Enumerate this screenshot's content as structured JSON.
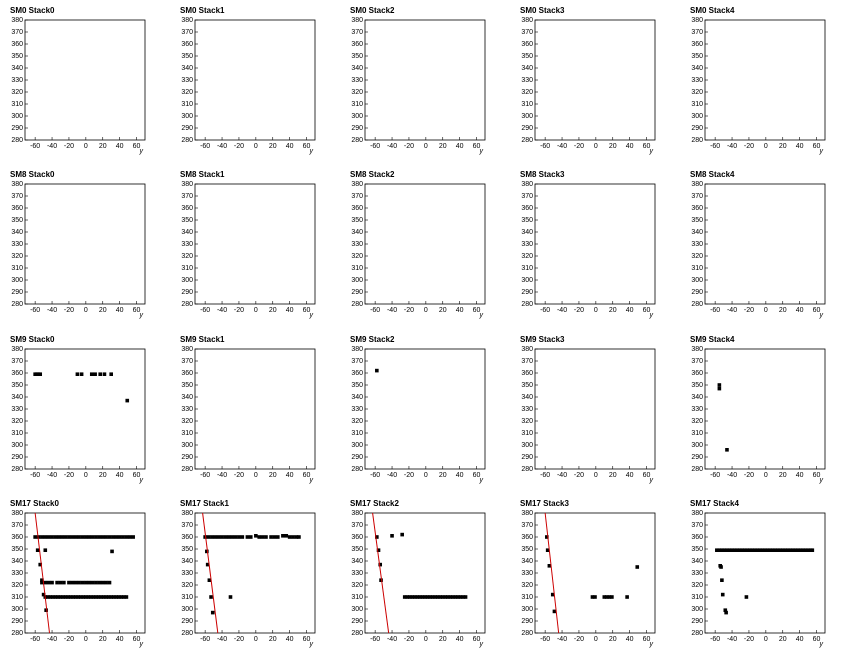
{
  "chart_data": [
    {
      "type": "scatter",
      "title": "SM0 Stack0",
      "x_label": "y",
      "xlim": [
        -72,
        70
      ],
      "ylim": [
        280,
        380
      ],
      "xticks": [
        -60,
        -40,
        -20,
        0,
        20,
        40,
        60
      ],
      "yticks": [
        280,
        290,
        300,
        310,
        320,
        330,
        340,
        350,
        360,
        370,
        380
      ],
      "color": "#000000",
      "x": [],
      "y": []
    },
    {
      "type": "scatter",
      "title": "SM0 Stack1",
      "x_label": "y",
      "xlim": [
        -72,
        70
      ],
      "ylim": [
        280,
        380
      ],
      "xticks": [
        -60,
        -40,
        -20,
        0,
        20,
        40,
        60
      ],
      "yticks": [
        280,
        290,
        300,
        310,
        320,
        330,
        340,
        350,
        360,
        370,
        380
      ],
      "color": "#000000",
      "x": [],
      "y": []
    },
    {
      "type": "scatter",
      "title": "SM0 Stack2",
      "x_label": "y",
      "xlim": [
        -72,
        70
      ],
      "ylim": [
        280,
        380
      ],
      "xticks": [
        -60,
        -40,
        -20,
        0,
        20,
        40,
        60
      ],
      "yticks": [
        280,
        290,
        300,
        310,
        320,
        330,
        340,
        350,
        360,
        370,
        380
      ],
      "color": "#000000",
      "x": [],
      "y": []
    },
    {
      "type": "scatter",
      "title": "SM0 Stack3",
      "x_label": "y",
      "xlim": [
        -72,
        70
      ],
      "ylim": [
        280,
        380
      ],
      "xticks": [
        -60,
        -40,
        -20,
        0,
        20,
        40,
        60
      ],
      "yticks": [
        280,
        290,
        300,
        310,
        320,
        330,
        340,
        350,
        360,
        370,
        380
      ],
      "color": "#000000",
      "x": [],
      "y": []
    },
    {
      "type": "scatter",
      "title": "SM0 Stack4",
      "x_label": "y",
      "xlim": [
        -72,
        70
      ],
      "ylim": [
        280,
        380
      ],
      "xticks": [
        -60,
        -40,
        -20,
        0,
        20,
        40,
        60
      ],
      "yticks": [
        280,
        290,
        300,
        310,
        320,
        330,
        340,
        350,
        360,
        370,
        380
      ],
      "color": "#000000",
      "x": [],
      "y": []
    },
    {
      "type": "scatter",
      "title": "SM8 Stack0",
      "x_label": "y",
      "xlim": [
        -72,
        70
      ],
      "ylim": [
        280,
        380
      ],
      "xticks": [
        -60,
        -40,
        -20,
        0,
        20,
        40,
        60
      ],
      "yticks": [
        280,
        290,
        300,
        310,
        320,
        330,
        340,
        350,
        360,
        370,
        380
      ],
      "color": "#000000",
      "x": [],
      "y": []
    },
    {
      "type": "scatter",
      "title": "SM8 Stack1",
      "x_label": "y",
      "xlim": [
        -72,
        70
      ],
      "ylim": [
        280,
        380
      ],
      "xticks": [
        -60,
        -40,
        -20,
        0,
        20,
        40,
        60
      ],
      "yticks": [
        280,
        290,
        300,
        310,
        320,
        330,
        340,
        350,
        360,
        370,
        380
      ],
      "color": "#000000",
      "x": [],
      "y": []
    },
    {
      "type": "scatter",
      "title": "SM8 Stack2",
      "x_label": "y",
      "xlim": [
        -72,
        70
      ],
      "ylim": [
        280,
        380
      ],
      "xticks": [
        -60,
        -40,
        -20,
        0,
        20,
        40,
        60
      ],
      "yticks": [
        280,
        290,
        300,
        310,
        320,
        330,
        340,
        350,
        360,
        370,
        380
      ],
      "color": "#000000",
      "x": [],
      "y": []
    },
    {
      "type": "scatter",
      "title": "SM8 Stack3",
      "x_label": "y",
      "xlim": [
        -72,
        70
      ],
      "ylim": [
        280,
        380
      ],
      "xticks": [
        -60,
        -40,
        -20,
        0,
        20,
        40,
        60
      ],
      "yticks": [
        280,
        290,
        300,
        310,
        320,
        330,
        340,
        350,
        360,
        370,
        380
      ],
      "color": "#000000",
      "x": [],
      "y": []
    },
    {
      "type": "scatter",
      "title": "SM8 Stack4",
      "x_label": "y",
      "xlim": [
        -72,
        70
      ],
      "ylim": [
        280,
        380
      ],
      "xticks": [
        -60,
        -40,
        -20,
        0,
        20,
        40,
        60
      ],
      "yticks": [
        280,
        290,
        300,
        310,
        320,
        330,
        340,
        350,
        360,
        370,
        380
      ],
      "color": "#000000",
      "x": [],
      "y": []
    },
    {
      "type": "scatter",
      "title": "SM9 Stack0",
      "x_label": "y",
      "xlim": [
        -72,
        70
      ],
      "ylim": [
        280,
        380
      ],
      "xticks": [
        -60,
        -40,
        -20,
        0,
        20,
        40,
        60
      ],
      "yticks": [
        280,
        290,
        300,
        310,
        320,
        330,
        340,
        350,
        360,
        370,
        380
      ],
      "color": "#000000",
      "x": [
        -60,
        -58,
        -56,
        -54,
        -10,
        -5,
        7,
        11,
        17,
        22,
        30,
        49
      ],
      "y": [
        359,
        359,
        359,
        359,
        359,
        359,
        359,
        359,
        359,
        359,
        359,
        337
      ]
    },
    {
      "type": "scatter",
      "title": "SM9 Stack1",
      "x_label": "y",
      "xlim": [
        -72,
        70
      ],
      "ylim": [
        280,
        380
      ],
      "xticks": [
        -60,
        -40,
        -20,
        0,
        20,
        40,
        60
      ],
      "yticks": [
        280,
        290,
        300,
        310,
        320,
        330,
        340,
        350,
        360,
        370,
        380
      ],
      "color": "#000000",
      "x": [],
      "y": []
    },
    {
      "type": "scatter",
      "title": "SM9 Stack2",
      "x_label": "y",
      "xlim": [
        -72,
        70
      ],
      "ylim": [
        280,
        380
      ],
      "xticks": [
        -60,
        -40,
        -20,
        0,
        20,
        40,
        60
      ],
      "yticks": [
        280,
        290,
        300,
        310,
        320,
        330,
        340,
        350,
        360,
        370,
        380
      ],
      "color": "#000000",
      "x": [
        -58
      ],
      "y": [
        362
      ]
    },
    {
      "type": "scatter",
      "title": "SM9 Stack3",
      "x_label": "y",
      "xlim": [
        -72,
        70
      ],
      "ylim": [
        280,
        380
      ],
      "xticks": [
        -60,
        -40,
        -20,
        0,
        20,
        40,
        60
      ],
      "yticks": [
        280,
        290,
        300,
        310,
        320,
        330,
        340,
        350,
        360,
        370,
        380
      ],
      "color": "#000000",
      "x": [],
      "y": []
    },
    {
      "type": "scatter",
      "title": "SM9 Stack4",
      "x_label": "y",
      "xlim": [
        -72,
        70
      ],
      "ylim": [
        280,
        380
      ],
      "xticks": [
        -60,
        -40,
        -20,
        0,
        20,
        40,
        60
      ],
      "yticks": [
        280,
        290,
        300,
        310,
        320,
        330,
        340,
        350,
        360,
        370,
        380
      ],
      "color": "#000000",
      "x": [
        -55,
        -55,
        -46
      ],
      "y": [
        350,
        347,
        296
      ]
    },
    {
      "type": "scatter",
      "title": "SM17 Stack0",
      "x_label": "y",
      "xlim": [
        -72,
        70
      ],
      "ylim": [
        280,
        380
      ],
      "xticks": [
        -60,
        -40,
        -20,
        0,
        20,
        40,
        60
      ],
      "yticks": [
        280,
        290,
        300,
        310,
        320,
        330,
        340,
        350,
        360,
        370,
        380
      ],
      "color": "#000000",
      "x": [
        -60,
        -56,
        -52,
        -48,
        -44,
        -40,
        -36,
        -32,
        -28,
        -24,
        -20,
        -16,
        -12,
        -8,
        -4,
        0,
        4,
        8,
        12,
        16,
        20,
        24,
        28,
        32,
        36,
        40,
        44,
        48,
        52,
        56,
        -57,
        -54,
        -52,
        -50,
        -47,
        -48,
        -52,
        -48,
        -44,
        -40,
        -34,
        -30,
        -26,
        -20,
        -16,
        -12,
        -8,
        -4,
        0,
        4,
        8,
        12,
        16,
        20,
        24,
        28,
        -48,
        -45,
        -42,
        -39,
        -36,
        -33,
        -30,
        -27,
        -24,
        -21,
        -18,
        -15,
        -12,
        -9,
        -6,
        -3,
        0,
        3,
        6,
        9,
        12,
        15,
        18,
        21,
        24,
        27,
        30,
        33,
        36,
        39,
        42,
        45,
        48,
        31
      ],
      "y": [
        360,
        360,
        360,
        360,
        360,
        360,
        360,
        360,
        360,
        360,
        360,
        360,
        360,
        360,
        360,
        360,
        360,
        360,
        360,
        360,
        360,
        360,
        360,
        360,
        360,
        360,
        360,
        360,
        360,
        360,
        349,
        337,
        324,
        312,
        299,
        349,
        322,
        322,
        322,
        322,
        322,
        322,
        322,
        322,
        322,
        322,
        322,
        322,
        322,
        322,
        322,
        322,
        322,
        322,
        322,
        322,
        310,
        310,
        310,
        310,
        310,
        310,
        310,
        310,
        310,
        310,
        310,
        310,
        310,
        310,
        310,
        310,
        310,
        310,
        310,
        310,
        310,
        310,
        310,
        310,
        310,
        310,
        310,
        310,
        310,
        310,
        310,
        310,
        310,
        348
      ],
      "fit": {
        "x": [
          -60,
          -43
        ],
        "y": [
          380,
          280
        ],
        "color": "#cc0000"
      }
    },
    {
      "type": "scatter",
      "title": "SM17 Stack1",
      "x_label": "y",
      "xlim": [
        -72,
        70
      ],
      "ylim": [
        280,
        380
      ],
      "xticks": [
        -60,
        -40,
        -20,
        0,
        20,
        40,
        60
      ],
      "yticks": [
        280,
        290,
        300,
        310,
        320,
        330,
        340,
        350,
        360,
        370,
        380
      ],
      "color": "#000000",
      "x": [
        -60,
        -56,
        -52,
        -48,
        -44,
        -40,
        -36,
        -32,
        -28,
        -24,
        -20,
        -16,
        -10,
        -6,
        0,
        4,
        8,
        12,
        18,
        22,
        26,
        32,
        36,
        40,
        44,
        48,
        51,
        -58,
        -57,
        -55,
        -53,
        -51,
        -30
      ],
      "y": [
        360,
        360,
        360,
        360,
        360,
        360,
        360,
        360,
        360,
        360,
        360,
        360,
        360,
        360,
        361,
        360,
        360,
        360,
        360,
        360,
        360,
        361,
        361,
        360,
        360,
        360,
        360,
        348,
        337,
        324,
        310,
        297,
        310
      ],
      "fit": {
        "x": [
          -63,
          -45
        ],
        "y": [
          380,
          280
        ],
        "color": "#cc0000"
      }
    },
    {
      "type": "scatter",
      "title": "SM17 Stack2",
      "x_label": "y",
      "xlim": [
        -72,
        70
      ],
      "ylim": [
        280,
        380
      ],
      "xticks": [
        -60,
        -40,
        -20,
        0,
        20,
        40,
        60
      ],
      "yticks": [
        280,
        290,
        300,
        310,
        320,
        330,
        340,
        350,
        360,
        370,
        380
      ],
      "color": "#000000",
      "x": [
        -58,
        -56,
        -54,
        -53,
        -40,
        -28,
        -25,
        -22,
        -19,
        -16,
        -13,
        -10,
        -7,
        -4,
        -1,
        2,
        5,
        8,
        11,
        14,
        17,
        20,
        23,
        26,
        29,
        32,
        35,
        38,
        41,
        44,
        47
      ],
      "y": [
        360,
        349,
        337,
        324,
        361,
        362,
        310,
        310,
        310,
        310,
        310,
        310,
        310,
        310,
        310,
        310,
        310,
        310,
        310,
        310,
        310,
        310,
        310,
        310,
        310,
        310,
        310,
        310,
        310,
        310,
        310
      ],
      "fit": {
        "x": [
          -63,
          -44
        ],
        "y": [
          380,
          280
        ],
        "color": "#cc0000"
      }
    },
    {
      "type": "scatter",
      "title": "SM17 Stack3",
      "x_label": "y",
      "xlim": [
        -72,
        70
      ],
      "ylim": [
        280,
        380
      ],
      "xticks": [
        -60,
        -40,
        -20,
        0,
        20,
        40,
        60
      ],
      "yticks": [
        280,
        290,
        300,
        310,
        320,
        330,
        340,
        350,
        360,
        370,
        380
      ],
      "color": "#000000",
      "x": [
        -58,
        -57,
        -55,
        -51,
        -49,
        -4,
        -1,
        10,
        13,
        16,
        19,
        37,
        49
      ],
      "y": [
        360,
        349,
        336,
        312,
        298,
        310,
        310,
        310,
        310,
        310,
        310,
        310,
        335
      ],
      "fit": {
        "x": [
          -60,
          -44
        ],
        "y": [
          380,
          280
        ],
        "color": "#cc0000"
      }
    },
    {
      "type": "scatter",
      "title": "SM17 Stack4",
      "x_label": "y",
      "xlim": [
        -72,
        70
      ],
      "ylim": [
        280,
        380
      ],
      "xticks": [
        -60,
        -40,
        -20,
        0,
        20,
        40,
        60
      ],
      "yticks": [
        280,
        290,
        300,
        310,
        320,
        330,
        340,
        350,
        360,
        370,
        380
      ],
      "color": "#000000",
      "x": [
        -58,
        -55,
        -52,
        -49,
        -46,
        -43,
        -40,
        -37,
        -34,
        -31,
        -28,
        -25,
        -22,
        -19,
        -16,
        -13,
        -10,
        -7,
        -4,
        -1,
        2,
        5,
        8,
        11,
        14,
        17,
        20,
        23,
        26,
        29,
        32,
        35,
        38,
        41,
        44,
        47,
        50,
        53,
        55,
        -54,
        -53,
        -52,
        -51,
        -48,
        -47,
        -23
      ],
      "y": [
        349,
        349,
        349,
        349,
        349,
        349,
        349,
        349,
        349,
        349,
        349,
        349,
        349,
        349,
        349,
        349,
        349,
        349,
        349,
        349,
        349,
        349,
        349,
        349,
        349,
        349,
        349,
        349,
        349,
        349,
        349,
        349,
        349,
        349,
        349,
        349,
        349,
        349,
        349,
        336,
        335,
        324,
        312,
        299,
        297,
        310
      ]
    }
  ]
}
